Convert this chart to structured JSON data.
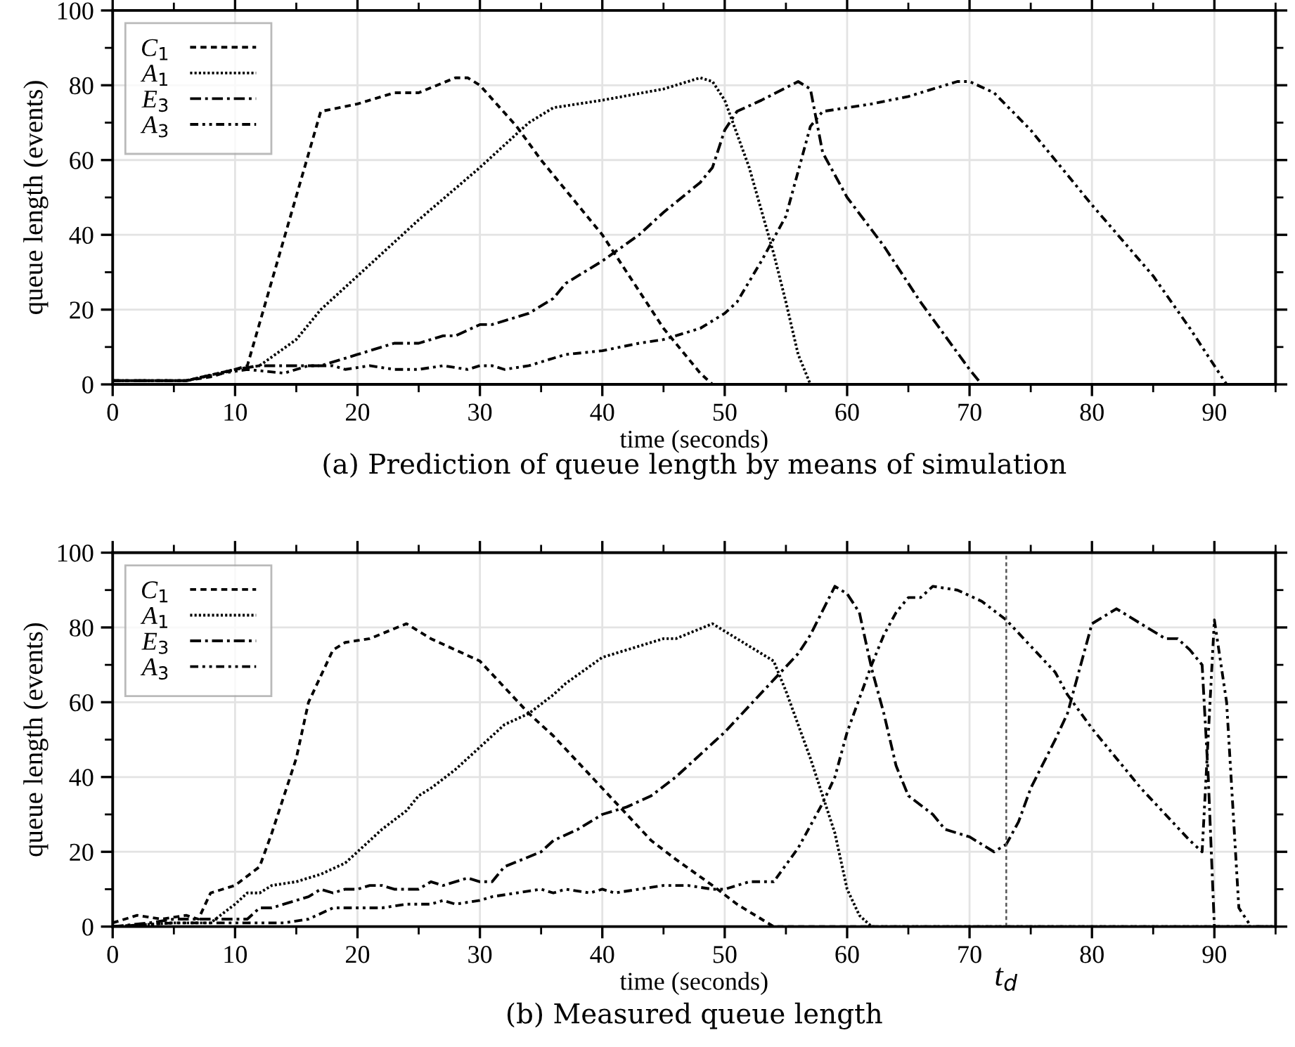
{
  "chart_data": [
    {
      "type": "line",
      "title": "(a) Prediction of queue length by means of simulation",
      "xlabel": "time (seconds)",
      "ylabel": "queue length (events)",
      "xlim": [
        0,
        95
      ],
      "xticks": [
        0,
        10,
        20,
        30,
        40,
        50,
        60,
        70,
        80,
        90
      ],
      "ylim": [
        0,
        100
      ],
      "yticks": [
        0,
        20,
        40,
        60,
        80,
        100
      ],
      "grid": true,
      "legend": "top left",
      "marker": "none",
      "series": [
        {
          "name": "C$_{1}$",
          "color": "#000000",
          "line_style": "dashed",
          "x": [
            0,
            6,
            8,
            10,
            11,
            17,
            20,
            23,
            25,
            28,
            29,
            30,
            33,
            35,
            40,
            45,
            48,
            49,
            95
          ],
          "values": [
            1,
            1,
            2,
            4,
            5,
            73,
            75,
            78,
            78,
            82,
            82,
            80,
            69,
            60,
            40,
            15,
            3,
            0,
            0
          ]
        },
        {
          "name": "A$_{1}$",
          "color": "#000000",
          "line_style": "dotted",
          "x": [
            0,
            6,
            10,
            12,
            15,
            17,
            20,
            25,
            30,
            34,
            36,
            40,
            45,
            48,
            49,
            50,
            52,
            54,
            55,
            56,
            57,
            95
          ],
          "values": [
            1,
            1,
            4,
            5,
            12,
            20,
            29,
            44,
            58,
            70,
            74,
            76,
            79,
            82,
            81,
            76,
            58,
            35,
            22,
            8,
            0,
            0
          ]
        },
        {
          "name": "E$_{3}$",
          "color": "#000000",
          "line_style": "dashdot",
          "x": [
            0,
            6,
            10,
            12,
            17,
            20,
            23,
            25,
            27,
            28,
            30,
            31,
            34,
            36,
            37,
            40,
            43,
            45,
            48,
            49,
            50,
            51,
            53,
            56,
            57,
            58,
            60,
            63,
            66,
            68,
            70,
            71,
            95
          ],
          "values": [
            1,
            1,
            4,
            5,
            5,
            8,
            11,
            11,
            13,
            13,
            16,
            16,
            19,
            23,
            27,
            33,
            40,
            46,
            54,
            58,
            68,
            73,
            76,
            81,
            79,
            62,
            50,
            37,
            22,
            13,
            4,
            0,
            0
          ]
        },
        {
          "name": "A$_{3}$",
          "color": "#000000",
          "line_style": "dashdotdot",
          "x": [
            0,
            6,
            9,
            11,
            14,
            16,
            18,
            19,
            21,
            23,
            25,
            27,
            29,
            30,
            31,
            32,
            34,
            37,
            40,
            43,
            45,
            46,
            48,
            50,
            51,
            53,
            55,
            56,
            57,
            58,
            60,
            62,
            65,
            67,
            69,
            70,
            72,
            75,
            80,
            85,
            88,
            90,
            91,
            95
          ],
          "values": [
            1,
            1,
            3,
            4,
            3,
            5,
            5,
            4,
            5,
            4,
            4,
            5,
            4,
            5,
            5,
            4,
            5,
            8,
            9,
            11,
            12,
            13,
            15,
            19,
            22,
            33,
            45,
            57,
            69,
            73,
            74,
            75,
            77,
            79,
            81,
            81,
            78,
            68,
            48,
            29,
            15,
            5,
            0,
            0
          ]
        }
      ]
    },
    {
      "type": "line",
      "title": "(b) Measured queue length",
      "xlabel": "time (seconds)",
      "ylabel": "queue length (events)",
      "xlim": [
        0,
        95
      ],
      "xticks": [
        0,
        10,
        20,
        30,
        40,
        50,
        60,
        70,
        80,
        90
      ],
      "ylim": [
        0,
        100
      ],
      "yticks": [
        0,
        20,
        40,
        60,
        80,
        100
      ],
      "grid": true,
      "legend": "top left",
      "marker": "none",
      "ref_lines": [
        {
          "axis": "x",
          "value": 73,
          "label": "t$_{d}$",
          "color": "#555555",
          "line_style": "dashed"
        }
      ],
      "series": [
        {
          "name": "C$_{1}$",
          "color": "#000000",
          "line_style": "dashed",
          "x": [
            0,
            2,
            4,
            6,
            7,
            8,
            10,
            12,
            13,
            15,
            16,
            17,
            18,
            19,
            21,
            24,
            26,
            28,
            30,
            32,
            34,
            36,
            40,
            44,
            46,
            49,
            51,
            53,
            54,
            95
          ],
          "values": [
            1,
            3,
            2,
            3,
            2,
            9,
            11,
            16,
            25,
            45,
            60,
            67,
            74,
            76,
            77,
            81,
            77,
            74,
            71,
            64,
            57,
            51,
            37,
            23,
            18,
            11,
            6,
            2,
            0,
            0
          ]
        },
        {
          "name": "A$_{1}$",
          "color": "#000000",
          "line_style": "dotted",
          "x": [
            0,
            5,
            8,
            10,
            11,
            12,
            13,
            15,
            17,
            19,
            20,
            22,
            24,
            25,
            26,
            28,
            30,
            32,
            34,
            36,
            37,
            40,
            42,
            44,
            45,
            46,
            49,
            52,
            54,
            55,
            57,
            59,
            60,
            61,
            62,
            95
          ],
          "values": [
            0,
            1,
            1,
            6,
            9,
            9,
            11,
            12,
            14,
            17,
            20,
            26,
            31,
            35,
            37,
            42,
            48,
            54,
            57,
            62,
            65,
            72,
            74,
            76,
            77,
            77,
            81,
            75,
            71,
            63,
            45,
            25,
            10,
            3,
            0,
            0
          ]
        },
        {
          "name": "E$_{3}$",
          "color": "#000000",
          "line_style": "dashdot",
          "x": [
            0,
            3,
            5,
            8,
            10,
            11,
            12,
            13,
            16,
            17,
            18,
            19,
            20,
            21,
            22,
            23,
            25,
            26,
            27,
            29,
            30,
            31,
            32,
            35,
            36,
            38,
            40,
            42,
            44,
            46,
            48,
            50,
            52,
            54,
            56,
            57,
            59,
            60,
            61,
            62,
            63,
            64,
            65,
            67,
            68,
            69,
            70,
            72,
            73,
            74,
            75,
            77,
            78,
            80,
            82,
            84,
            86,
            87,
            88,
            89,
            89.5,
            90,
            95
          ],
          "values": [
            0,
            1,
            2,
            2,
            2,
            2,
            5,
            5,
            8,
            10,
            9,
            10,
            10,
            11,
            11,
            10,
            10,
            12,
            11,
            13,
            12,
            12,
            16,
            20,
            23,
            26,
            30,
            32,
            35,
            40,
            46,
            52,
            59,
            66,
            73,
            78,
            91,
            89,
            84,
            69,
            57,
            43,
            35,
            30,
            26,
            25,
            24,
            20,
            22,
            28,
            37,
            50,
            57,
            81,
            85,
            81,
            77,
            77,
            74,
            70,
            40,
            0,
            0
          ]
        },
        {
          "name": "A$_{3}$",
          "color": "#000000",
          "line_style": "dashdotdot",
          "x": [
            0,
            5,
            8,
            10,
            12,
            14,
            16,
            18,
            20,
            22,
            24,
            26,
            27,
            28,
            30,
            31,
            33,
            35,
            36,
            37,
            39,
            40,
            41,
            43,
            45,
            47,
            49,
            50,
            52,
            54,
            56,
            58,
            59,
            60,
            62,
            63,
            64,
            65,
            66,
            67,
            69,
            71,
            73,
            75,
            77,
            78,
            80,
            82,
            84,
            86,
            88,
            89,
            90,
            91,
            92,
            93
          ],
          "values": [
            0,
            1,
            1,
            1,
            1,
            1,
            2,
            5,
            5,
            5,
            6,
            6,
            7,
            6,
            7,
            8,
            9,
            10,
            9,
            10,
            9,
            10,
            9,
            10,
            11,
            11,
            10,
            10,
            12,
            12,
            21,
            33,
            40,
            52,
            70,
            78,
            84,
            88,
            88,
            91,
            90,
            87,
            82,
            75,
            68,
            62,
            53,
            45,
            37,
            30,
            23,
            20,
            82,
            60,
            5,
            0
          ]
        }
      ]
    }
  ]
}
